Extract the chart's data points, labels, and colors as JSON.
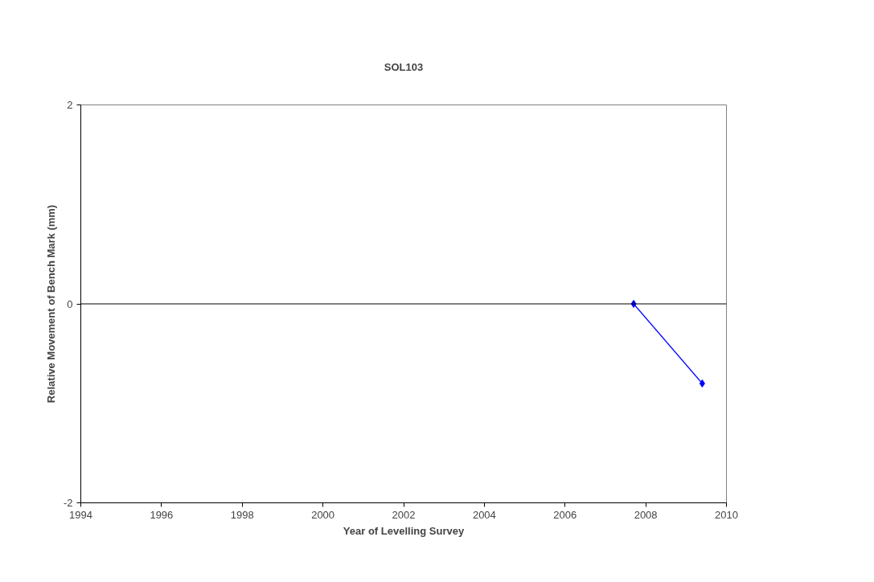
{
  "chart_data": {
    "type": "line",
    "title": "SOL103",
    "xlabel": "Year of Levelling Survey",
    "ylabel": "Relative Movement of Bench Mark (mm)",
    "x": [
      2007.7,
      2009.4
    ],
    "series": [
      {
        "color": "#0000ff",
        "values": [
          0,
          -0.8
        ]
      }
    ],
    "xlim": [
      1994,
      2010
    ],
    "xticks": [
      1994,
      1996,
      1998,
      2000,
      2002,
      2004,
      2006,
      2008,
      2010
    ],
    "ylim": [
      -2,
      2
    ],
    "yticks": [
      -2,
      0,
      2
    ],
    "ref_lines": [
      {
        "axis": "y",
        "value": 0,
        "color": "#000000"
      }
    ],
    "grid": false,
    "marker": "diamond",
    "line_style": "solid"
  }
}
